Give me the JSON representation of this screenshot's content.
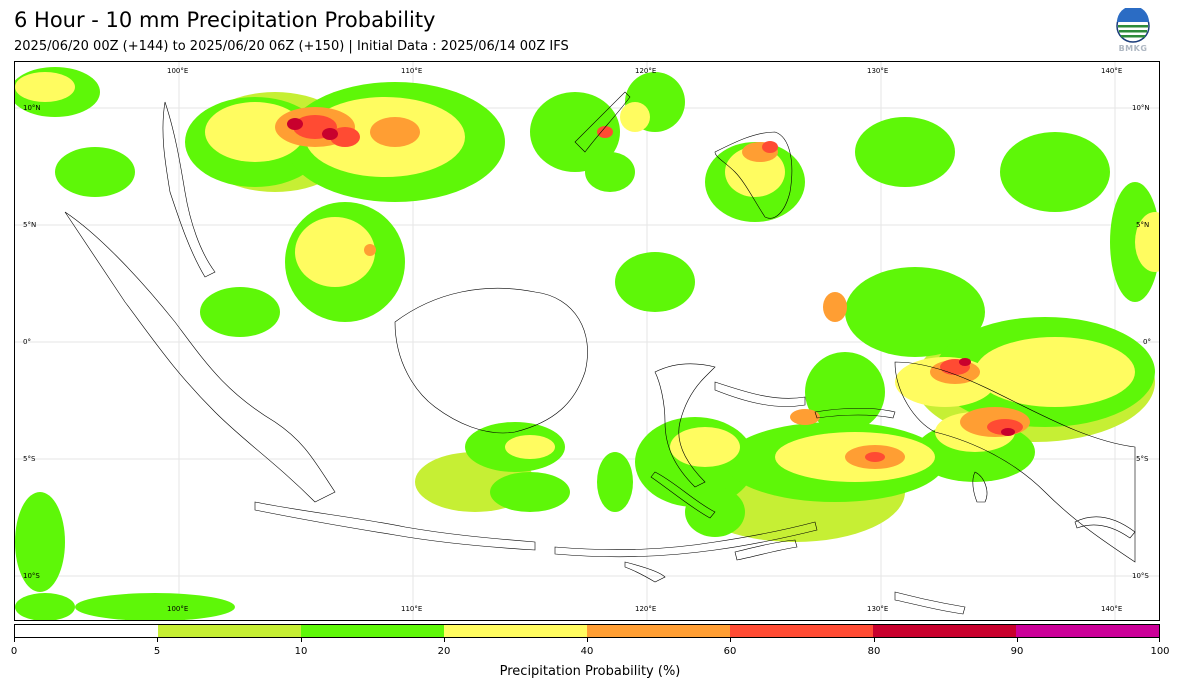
{
  "header": {
    "title": "6 Hour - 10 mm Precipitation Probability",
    "subtitle": "2025/06/20 00Z (+144) to 2025/06/20 06Z (+150) | Initial Data : 2025/06/14 00Z IFS",
    "logo_text": "BMKG"
  },
  "map": {
    "lon_labels": [
      "100°E",
      "110°E",
      "120°E",
      "130°E",
      "140°E"
    ],
    "lat_labels": [
      "10°N",
      "5°N",
      "0°",
      "5°S",
      "10°S"
    ],
    "colors": {
      "land_outline": "#000000",
      "gridline": "#e0e0e0"
    }
  },
  "colorbar": {
    "label": "Precipitation Probability (%)",
    "ticks": [
      "0",
      "5",
      "10",
      "20",
      "40",
      "60",
      "80",
      "90",
      "100"
    ],
    "colors": [
      "#ffffff",
      "#c6ef34",
      "#5ef708",
      "#fffc60",
      "#ff9e33",
      "#ff4b33",
      "#c8002d",
      "#cc0099"
    ]
  }
}
